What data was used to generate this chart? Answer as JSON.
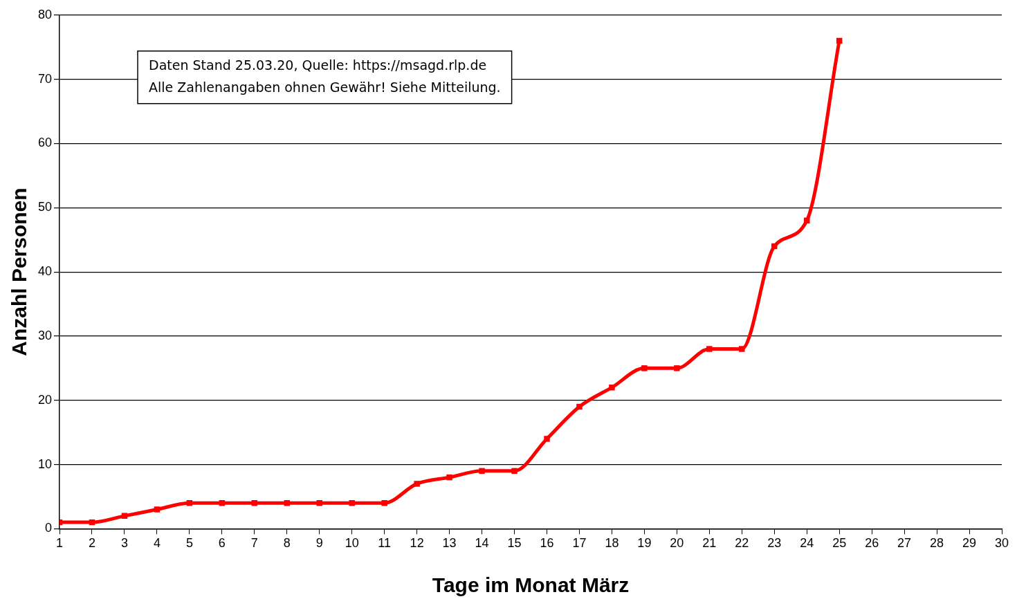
{
  "chart_data": {
    "type": "line",
    "xlabel": "Tage im Monat März",
    "ylabel": "Anzahl Personen",
    "x": [
      1,
      2,
      3,
      4,
      5,
      6,
      7,
      8,
      9,
      10,
      11,
      12,
      13,
      14,
      15,
      16,
      17,
      18,
      19,
      20,
      21,
      22,
      23,
      24,
      25
    ],
    "series": [
      {
        "color": "#ff0000",
        "values": [
          1,
          1,
          2,
          3,
          4,
          4,
          4,
          4,
          4,
          4,
          4,
          7,
          8,
          9,
          9,
          14,
          19,
          22,
          25,
          25,
          28,
          28,
          44,
          48,
          76
        ]
      }
    ],
    "xlim": [
      1,
      30
    ],
    "xticks": [
      1,
      2,
      3,
      4,
      5,
      6,
      7,
      8,
      9,
      10,
      11,
      12,
      13,
      14,
      15,
      16,
      17,
      18,
      19,
      20,
      21,
      22,
      23,
      24,
      25,
      26,
      27,
      28,
      29,
      30
    ],
    "ylim": [
      0,
      80
    ],
    "yticks": [
      0,
      10,
      20,
      30,
      40,
      50,
      60,
      70,
      80
    ],
    "grid": "y",
    "legend": false,
    "marker": "square",
    "line_style": "solid",
    "annotations": [
      "Daten Stand 25.03.20, Quelle: https://msagd.rlp.de",
      "Alle Zahlenangaben ohnen Gewähr! Siehe Mitteilung."
    ]
  }
}
